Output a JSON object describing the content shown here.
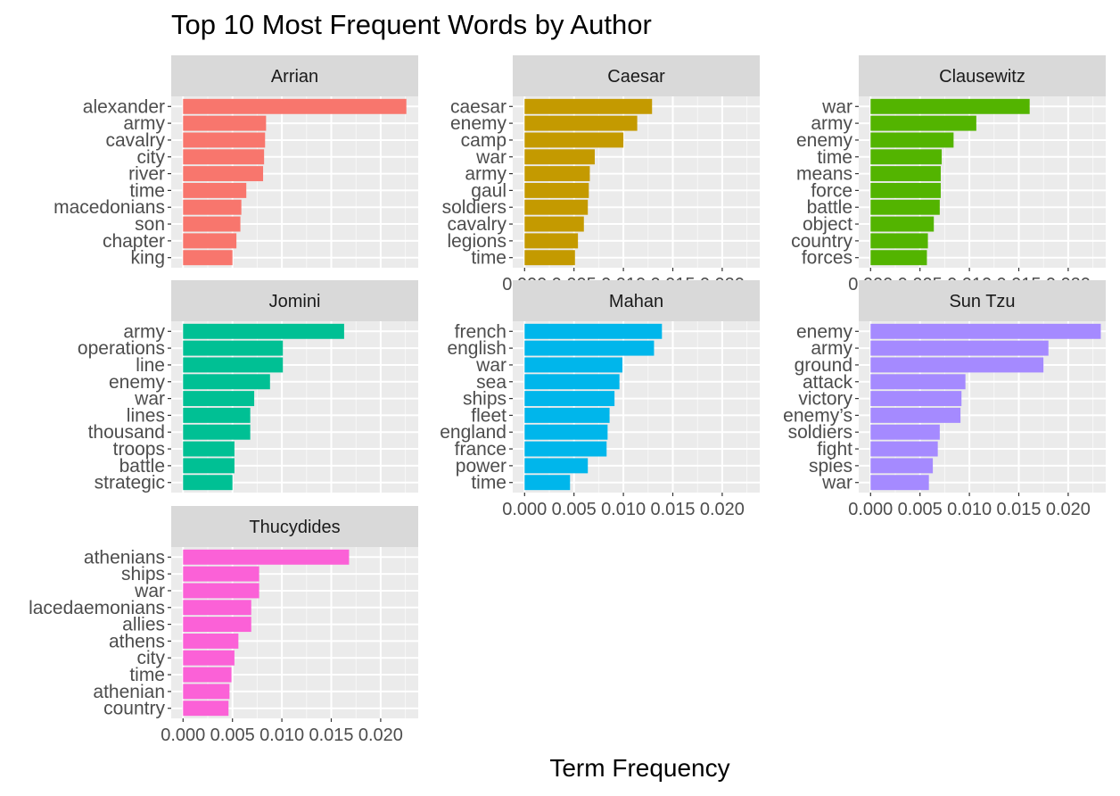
{
  "chart_data": {
    "type": "bar",
    "orientation": "horizontal",
    "title": "Top 10 Most Frequent Words by Author",
    "xlabel": "Term Frequency",
    "ylabel": "",
    "xlim": [
      -0.0012,
      0.0238
    ],
    "x_ticks": [
      "0.000",
      "0.005",
      "0.010",
      "0.015",
      "0.020"
    ],
    "x_tick_values": [
      0,
      0.005,
      0.01,
      0.015,
      0.02
    ],
    "grid": true,
    "legend": "none",
    "facets": [
      {
        "name": "Arrian",
        "color": "#F8766D",
        "words": [
          "alexander",
          "army",
          "cavalry",
          "city",
          "river",
          "time",
          "macedonians",
          "son",
          "chapter",
          "king"
        ],
        "values": [
          0.0226,
          0.0084,
          0.0083,
          0.0082,
          0.0081,
          0.0064,
          0.0059,
          0.0058,
          0.0054,
          0.005
        ]
      },
      {
        "name": "Caesar",
        "color": "#C49A00",
        "words": [
          "caesar",
          "enemy",
          "camp",
          "war",
          "army",
          "gaul",
          "soldiers",
          "cavalry",
          "legions",
          "time"
        ],
        "values": [
          0.0129,
          0.0114,
          0.01,
          0.0071,
          0.0066,
          0.0065,
          0.0064,
          0.006,
          0.0054,
          0.0051
        ]
      },
      {
        "name": "Clausewitz",
        "color": "#53B400",
        "words": [
          "war",
          "army",
          "enemy",
          "time",
          "means",
          "force",
          "battle",
          "object",
          "country",
          "forces"
        ],
        "values": [
          0.0161,
          0.0107,
          0.0084,
          0.0072,
          0.0071,
          0.0071,
          0.007,
          0.0064,
          0.0058,
          0.0057
        ]
      },
      {
        "name": "Jomini",
        "color": "#00C094",
        "words": [
          "army",
          "operations",
          "line",
          "enemy",
          "war",
          "lines",
          "thousand",
          "troops",
          "battle",
          "strategic"
        ],
        "values": [
          0.0163,
          0.0101,
          0.0101,
          0.0088,
          0.0072,
          0.0068,
          0.0068,
          0.0052,
          0.0052,
          0.005
        ]
      },
      {
        "name": "Mahan",
        "color": "#00B6EB",
        "words": [
          "french",
          "english",
          "war",
          "sea",
          "ships",
          "fleet",
          "england",
          "france",
          "power",
          "time"
        ],
        "values": [
          0.0139,
          0.0131,
          0.0099,
          0.0096,
          0.0091,
          0.0086,
          0.0084,
          0.0083,
          0.0064,
          0.0046
        ]
      },
      {
        "name": "Sun Tzu",
        "color": "#A58AFF",
        "words": [
          "enemy",
          "army",
          "ground",
          "attack",
          "victory",
          "enemy’s",
          "soldiers",
          "fight",
          "spies",
          "war"
        ],
        "values": [
          0.0233,
          0.018,
          0.0175,
          0.0096,
          0.0092,
          0.0091,
          0.007,
          0.0068,
          0.0063,
          0.0059
        ]
      },
      {
        "name": "Thucydides",
        "color": "#FB61D7",
        "words": [
          "athenians",
          "ships",
          "war",
          "lacedaemonians",
          "allies",
          "athens",
          "city",
          "time",
          "athenian",
          "country"
        ],
        "values": [
          0.0168,
          0.0077,
          0.0077,
          0.0069,
          0.0069,
          0.0056,
          0.0052,
          0.0049,
          0.0047,
          0.0046
        ]
      }
    ]
  }
}
